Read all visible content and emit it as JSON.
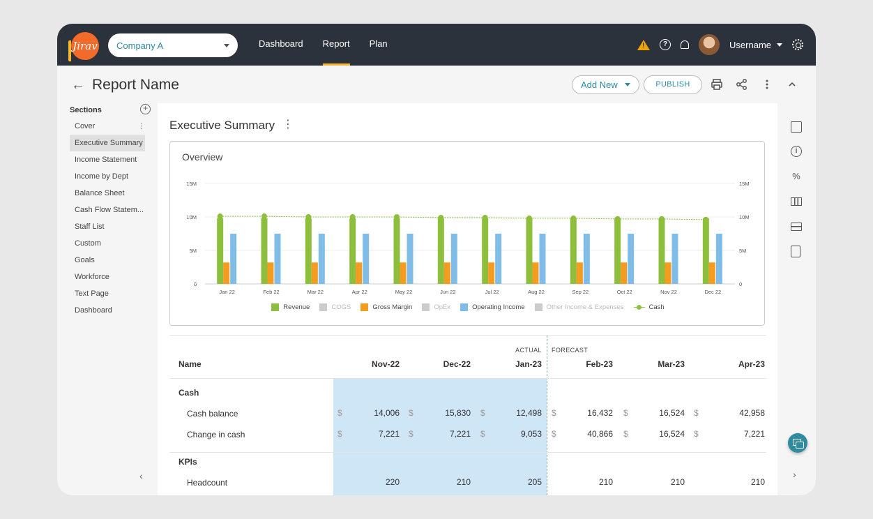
{
  "topbar": {
    "logo_text": "Jirav",
    "company_selector": "Company A",
    "nav": [
      "Dashboard",
      "Report",
      "Plan"
    ],
    "active_nav": "Report",
    "username": "Username"
  },
  "header": {
    "back_glyph": "←",
    "title": "Report Name",
    "add_new_label": "Add New",
    "publish_label": "PUBLISH",
    "icons": [
      "printer-icon",
      "share-icon",
      "more-vert-icon",
      "chevron-up-icon"
    ]
  },
  "sidebar": {
    "heading": "Sections",
    "items": [
      {
        "label": "Cover"
      },
      {
        "label": "Executive Summary"
      },
      {
        "label": "Income Statement"
      },
      {
        "label": "Income by Dept"
      },
      {
        "label": "Balance Sheet"
      },
      {
        "label": "Cash Flow Statem..."
      },
      {
        "label": "Staff List"
      },
      {
        "label": "Custom"
      },
      {
        "label": "Goals"
      },
      {
        "label": "Workforce"
      },
      {
        "label": "Text Page"
      },
      {
        "label": "Dashboard"
      }
    ],
    "active_item": "Executive Summary"
  },
  "main": {
    "section_title": "Executive Summary",
    "overview_title": "Overview"
  },
  "chart_data": {
    "type": "bar",
    "categories": [
      "Jan 22",
      "Feb 22",
      "Mar 22",
      "Apr 22",
      "May 22",
      "Jun 22",
      "Jul 22",
      "Aug 22",
      "Sep 22",
      "Oct 22",
      "Nov 22",
      "Dec 22"
    ],
    "y_ticks_left": [
      "15M",
      "10M",
      "5M",
      "0"
    ],
    "y_ticks_right": [
      "15M",
      "10M",
      "5M",
      "0"
    ],
    "ylim": [
      0,
      15
    ],
    "grid": true,
    "series": [
      {
        "name": "Revenue",
        "type": "bar",
        "color": "#8dbf3c",
        "values": [
          9.8,
          9.8,
          9.8,
          9.8,
          9.8,
          9.8,
          9.8,
          9.8,
          9.8,
          9.8,
          9.8,
          9.8
        ]
      },
      {
        "name": "Gross Margin",
        "type": "bar",
        "color": "#f39c1f",
        "values": [
          3.2,
          3.2,
          3.2,
          3.2,
          3.2,
          3.2,
          3.2,
          3.2,
          3.2,
          3.2,
          3.2,
          3.2
        ]
      },
      {
        "name": "Operating Income",
        "type": "bar",
        "color": "#7fbde8",
        "values": [
          7.5,
          7.5,
          7.5,
          7.5,
          7.5,
          7.5,
          7.5,
          7.5,
          7.5,
          7.5,
          7.5,
          7.5
        ]
      },
      {
        "name": "Cash",
        "type": "line",
        "color": "#8dbf3c",
        "values": [
          10.1,
          10.1,
          10.0,
          10.0,
          10.0,
          9.9,
          9.9,
          9.8,
          9.8,
          9.7,
          9.7,
          9.6
        ]
      }
    ],
    "legend": [
      {
        "name": "Revenue",
        "color": "#8dbf3c",
        "muted": false,
        "kind": "box"
      },
      {
        "name": "COGS",
        "color": "#cccccc",
        "muted": true,
        "kind": "box"
      },
      {
        "name": "Gross Margin",
        "color": "#f39c1f",
        "muted": false,
        "kind": "box"
      },
      {
        "name": "OpEx",
        "color": "#cccccc",
        "muted": true,
        "kind": "box"
      },
      {
        "name": "Operating Income",
        "color": "#7fbde8",
        "muted": false,
        "kind": "box"
      },
      {
        "name": "Other Income & Expenses",
        "color": "#cccccc",
        "muted": true,
        "kind": "box"
      },
      {
        "name": "Cash",
        "color": "#8dbf3c",
        "muted": false,
        "kind": "line"
      }
    ]
  },
  "table": {
    "actual_label": "ACTUAL",
    "forecast_label": "FORECAST",
    "name_header": "Name",
    "columns": [
      "Nov-22",
      "Dec-22",
      "Jan-23",
      "Feb-23",
      "Mar-23",
      "Apr-23"
    ],
    "currency_symbol": "$",
    "groups": [
      {
        "label": "Cash",
        "rows": [
          {
            "name": "Cash balance",
            "currency": true,
            "values": [
              "14,006",
              "15,830",
              "12,498",
              "16,432",
              "16,524",
              "42,958"
            ]
          },
          {
            "name": "Change in cash",
            "currency": true,
            "values": [
              "7,221",
              "7,221",
              "9,053",
              "40,866",
              "16,524",
              "7,221"
            ]
          }
        ]
      },
      {
        "label": "KPIs",
        "rows": [
          {
            "name": "Headcount",
            "currency": false,
            "values": [
              "220",
              "210",
              "205",
              "210",
              "210",
              "210"
            ]
          }
        ]
      }
    ]
  },
  "right_rail": {
    "icons": [
      "comment-icon",
      "info-icon",
      "percent-icon",
      "columns-icon",
      "rows-icon",
      "clipboard-settings-icon"
    ],
    "percent_glyph": "%"
  }
}
